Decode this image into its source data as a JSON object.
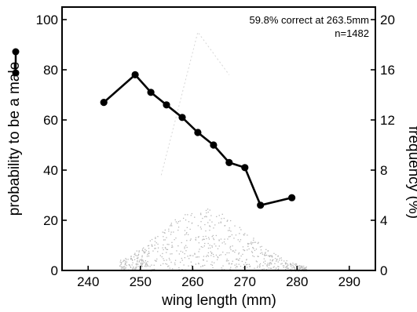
{
  "chart_data": {
    "type": "line",
    "title": "",
    "annotations": [
      "59.8% correct at 263.5mm",
      "n=1482"
    ],
    "xlabel": "wing length (mm)",
    "ylabel_left": "probability to be a male",
    "ylabel_right": "frequency (%)",
    "xlim": [
      235,
      295
    ],
    "ylim_left": [
      0,
      105
    ],
    "ylim_right": [
      0,
      21
    ],
    "x_ticks": [
      "240",
      "250",
      "260",
      "270",
      "280",
      "290"
    ],
    "y_ticks_left": [
      "0",
      "20",
      "40",
      "60",
      "80",
      "100"
    ],
    "y_ticks_right": [
      "0",
      "4",
      "8",
      "12",
      "16",
      "20"
    ],
    "grid": false,
    "series": [
      {
        "x": [
          243,
          249,
          252,
          255,
          258,
          261,
          264,
          267,
          270,
          273,
          279
        ],
        "y": [
          67,
          78,
          71,
          66,
          61,
          55,
          50,
          43,
          41,
          26,
          29
        ],
        "color": "#000000",
        "marker": "circle"
      }
    ],
    "background_frequency_hint": {
      "faint_peak_x": [
        254,
        261,
        267
      ],
      "faint_peak_y_right": [
        7.6,
        19,
        15.6
      ]
    }
  }
}
